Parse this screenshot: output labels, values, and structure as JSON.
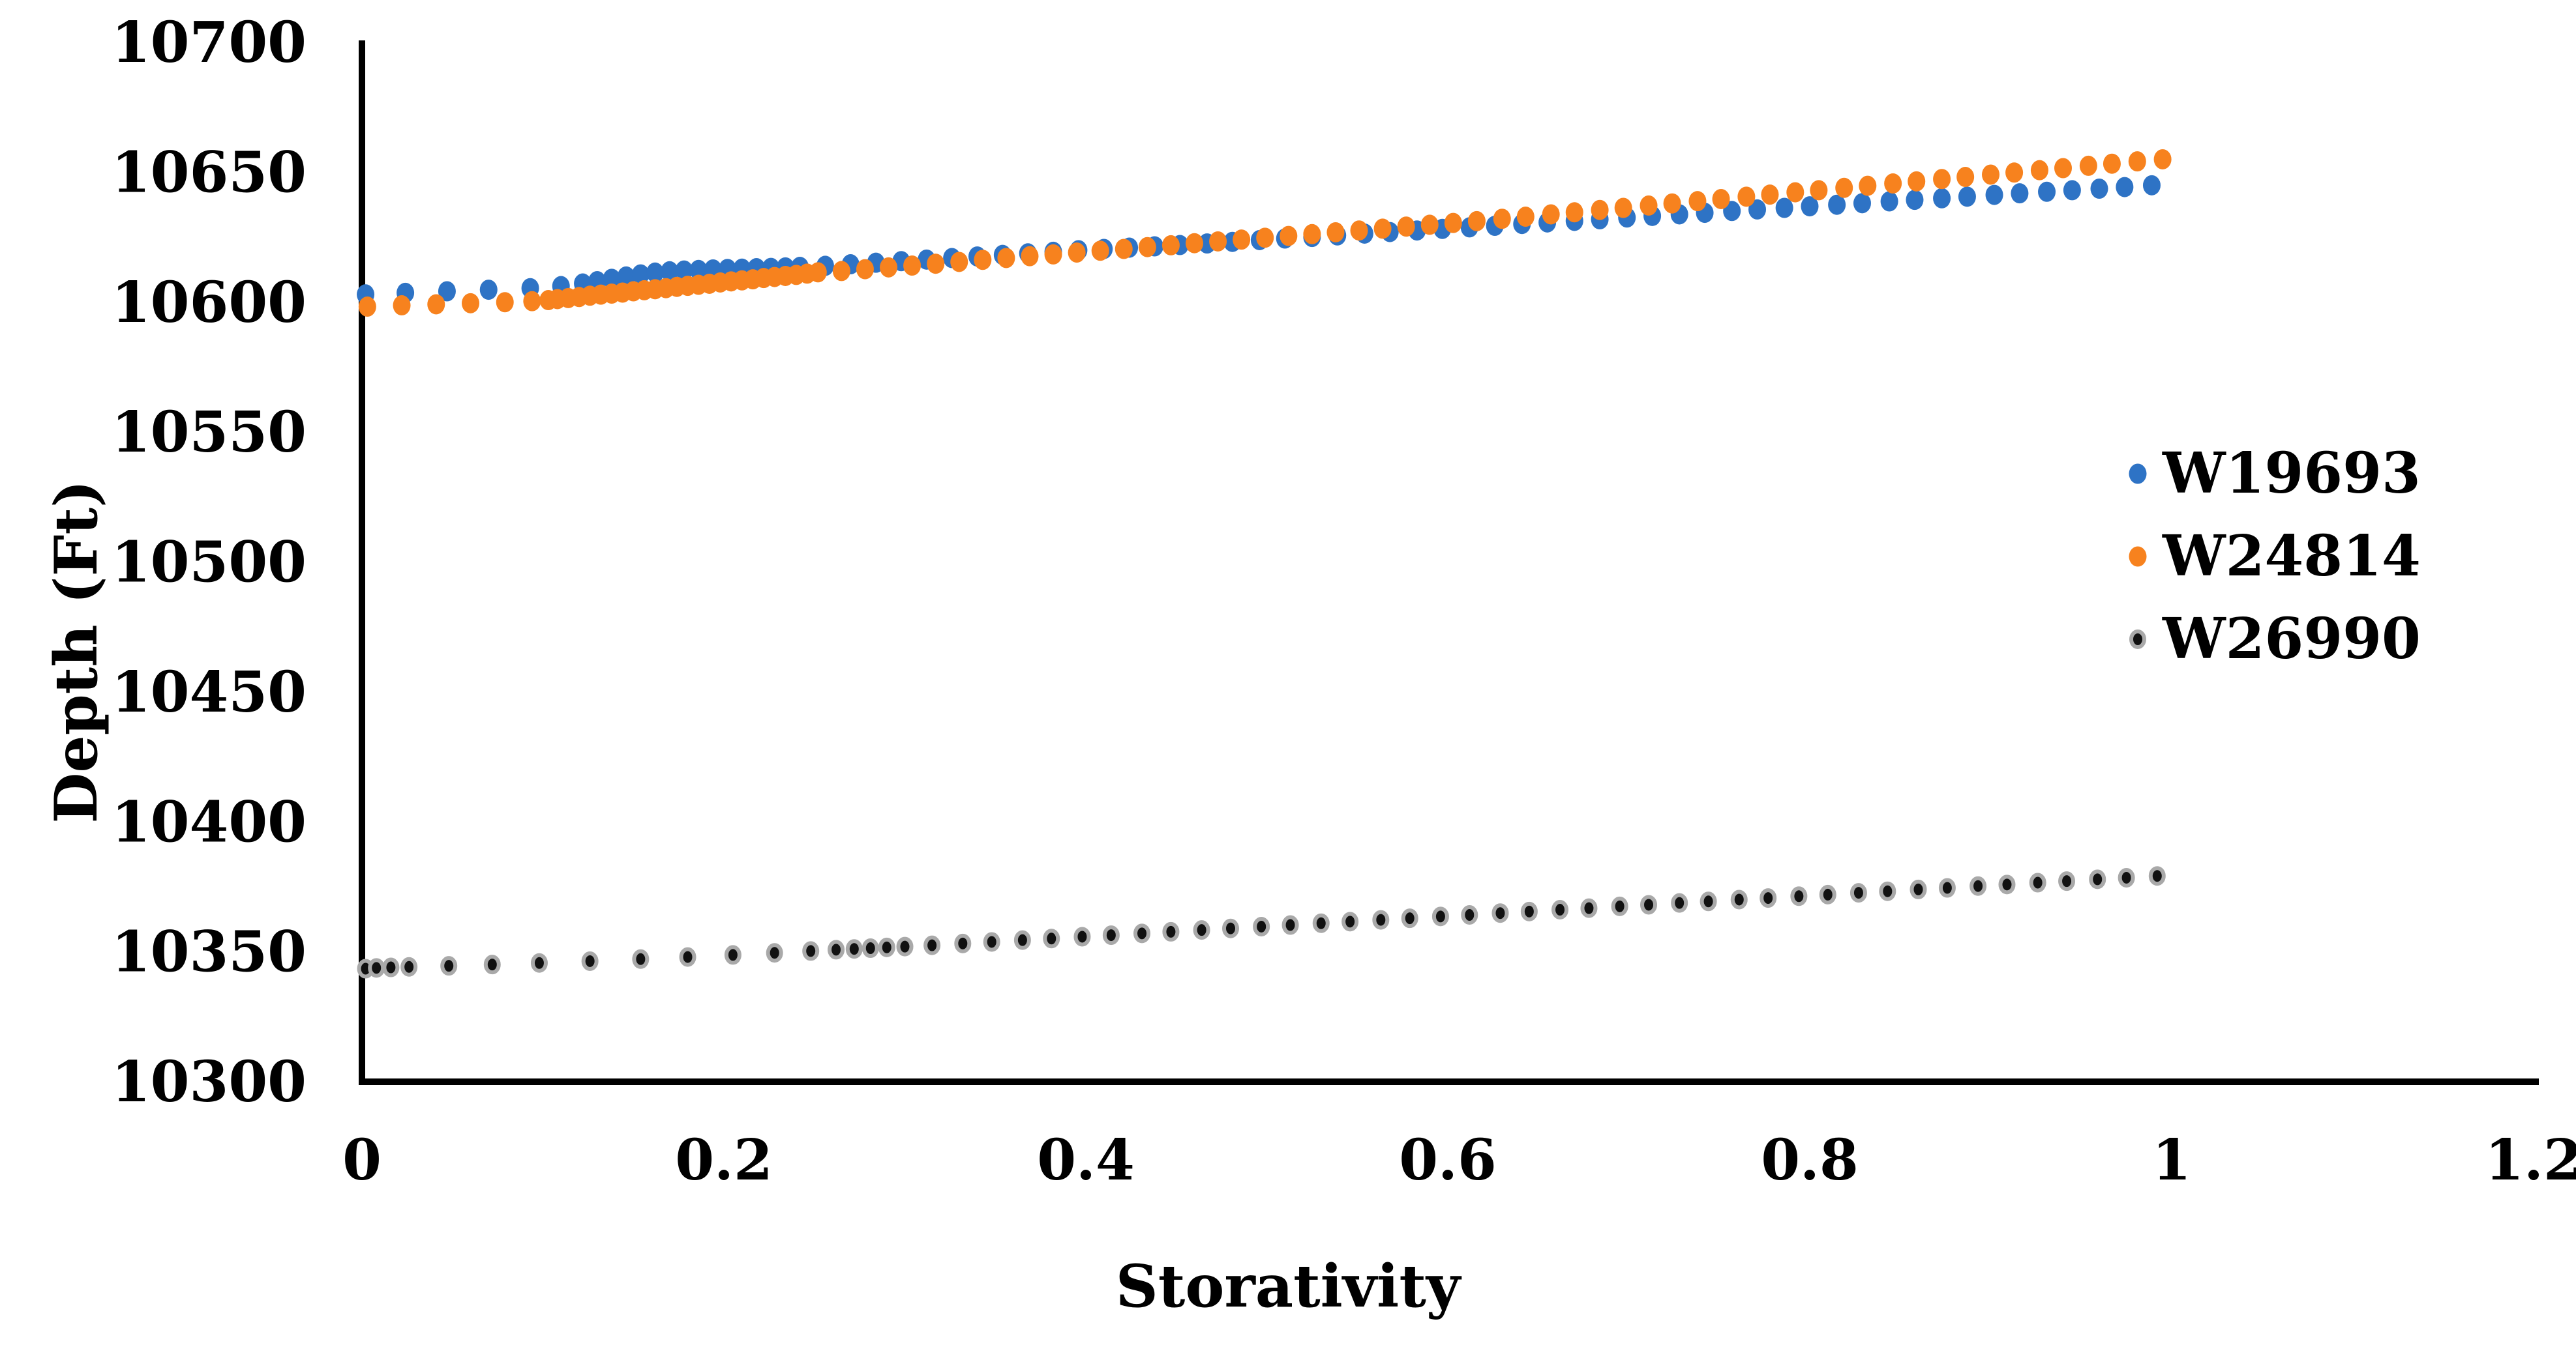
{
  "chart_data": {
    "type": "scatter",
    "title": "",
    "xlabel": "Storativity",
    "ylabel": "Depth (Ft)",
    "xlim": [
      0,
      1.2
    ],
    "ylim": [
      10300,
      10700
    ],
    "x_ticks": [
      0,
      0.2,
      0.4,
      0.6,
      0.8,
      1,
      1.2
    ],
    "x_tick_labels": [
      "0",
      "0.2",
      "0.4",
      "0.6",
      "0.8",
      "1",
      "1.2"
    ],
    "y_ticks": [
      10700,
      10650,
      10600,
      10550,
      10500,
      10450,
      10400,
      10350,
      10300
    ],
    "y_tick_labels": [
      "10700",
      "10650",
      "10600",
      "10550",
      "10500",
      "10450",
      "10400",
      "10350",
      "10300"
    ],
    "grid": false,
    "legend_position": "right",
    "axis_color": "#000000",
    "text_color": "#000000",
    "series": [
      {
        "name": "W19693",
        "color": "#2E73C5",
        "marker": "circle",
        "points": [
          [
            0.002,
            10603
          ],
          [
            0.024,
            10603.6
          ],
          [
            0.047,
            10604.2
          ],
          [
            0.07,
            10604.8
          ],
          [
            0.093,
            10605.4
          ],
          [
            0.11,
            10606.2
          ],
          [
            0.122,
            10607.2
          ],
          [
            0.13,
            10608.1
          ],
          [
            0.138,
            10609.0
          ],
          [
            0.146,
            10609.9
          ],
          [
            0.154,
            10610.7
          ],
          [
            0.162,
            10611.4
          ],
          [
            0.17,
            10611.9
          ],
          [
            0.178,
            10612.2
          ],
          [
            0.186,
            10612.4
          ],
          [
            0.194,
            10612.6
          ],
          [
            0.202,
            10612.8
          ],
          [
            0.21,
            10612.9
          ],
          [
            0.218,
            10613.1
          ],
          [
            0.226,
            10613.2
          ],
          [
            0.234,
            10613.4
          ],
          [
            0.242,
            10613.6
          ],
          [
            0.256,
            10614.0
          ],
          [
            0.27,
            10614.6
          ],
          [
            0.284,
            10615.2
          ],
          [
            0.298,
            10615.8
          ],
          [
            0.312,
            10616.4
          ],
          [
            0.326,
            10617.0
          ],
          [
            0.34,
            10617.6
          ],
          [
            0.354,
            10618.2
          ],
          [
            0.368,
            10618.8
          ],
          [
            0.382,
            10619.4
          ],
          [
            0.396,
            10620.0
          ],
          [
            0.41,
            10620.5
          ],
          [
            0.424,
            10621.0
          ],
          [
            0.438,
            10621.5
          ],
          [
            0.452,
            10622.0
          ],
          [
            0.467,
            10622.6
          ],
          [
            0.481,
            10623.2
          ],
          [
            0.496,
            10623.9
          ],
          [
            0.51,
            10624.5
          ],
          [
            0.525,
            10625.1
          ],
          [
            0.539,
            10625.7
          ],
          [
            0.554,
            10626.4
          ],
          [
            0.568,
            10627.0
          ],
          [
            0.583,
            10627.6
          ],
          [
            0.597,
            10628.2
          ],
          [
            0.612,
            10628.8
          ],
          [
            0.626,
            10629.4
          ],
          [
            0.641,
            10630.1
          ],
          [
            0.655,
            10630.7
          ],
          [
            0.67,
            10631.3
          ],
          [
            0.684,
            10631.9
          ],
          [
            0.699,
            10632.6
          ],
          [
            0.713,
            10633.2
          ],
          [
            0.728,
            10633.8
          ],
          [
            0.742,
            10634.4
          ],
          [
            0.757,
            10635.1
          ],
          [
            0.771,
            10635.7
          ],
          [
            0.786,
            10636.3
          ],
          [
            0.8,
            10636.9
          ],
          [
            0.815,
            10637.5
          ],
          [
            0.829,
            10638.1
          ],
          [
            0.844,
            10638.8
          ],
          [
            0.858,
            10639.4
          ],
          [
            0.873,
            10640.0
          ],
          [
            0.887,
            10640.6
          ],
          [
            0.902,
            10641.3
          ],
          [
            0.916,
            10641.9
          ],
          [
            0.931,
            10642.5
          ],
          [
            0.945,
            10643.1
          ],
          [
            0.96,
            10643.7
          ],
          [
            0.974,
            10644.3
          ],
          [
            0.989,
            10645.0
          ]
        ]
      },
      {
        "name": "W24814",
        "color": "#F7821E",
        "marker": "circle",
        "points": [
          [
            0.003,
            10598.3
          ],
          [
            0.022,
            10598.8
          ],
          [
            0.041,
            10599.2
          ],
          [
            0.06,
            10599.6
          ],
          [
            0.079,
            10600.0
          ],
          [
            0.094,
            10600.4
          ],
          [
            0.103,
            10600.8
          ],
          [
            0.108,
            10601.2
          ],
          [
            0.114,
            10601.6
          ],
          [
            0.12,
            10602.0
          ],
          [
            0.126,
            10602.5
          ],
          [
            0.132,
            10602.9
          ],
          [
            0.138,
            10603.3
          ],
          [
            0.144,
            10603.7
          ],
          [
            0.15,
            10604.2
          ],
          [
            0.156,
            10604.6
          ],
          [
            0.162,
            10605.0
          ],
          [
            0.168,
            10605.4
          ],
          [
            0.174,
            10605.9
          ],
          [
            0.18,
            10606.3
          ],
          [
            0.186,
            10606.7
          ],
          [
            0.192,
            10607.1
          ],
          [
            0.198,
            10607.6
          ],
          [
            0.204,
            10608.0
          ],
          [
            0.21,
            10608.4
          ],
          [
            0.216,
            10608.8
          ],
          [
            0.222,
            10609.3
          ],
          [
            0.228,
            10609.7
          ],
          [
            0.234,
            10610.1
          ],
          [
            0.24,
            10610.5
          ],
          [
            0.246,
            10611.0
          ],
          [
            0.252,
            10611.5
          ],
          [
            0.265,
            10612.0
          ],
          [
            0.278,
            10612.7
          ],
          [
            0.291,
            10613.4
          ],
          [
            0.304,
            10614.1
          ],
          [
            0.317,
            10614.8
          ],
          [
            0.33,
            10615.5
          ],
          [
            0.343,
            10616.3
          ],
          [
            0.356,
            10617.0
          ],
          [
            0.369,
            10617.7
          ],
          [
            0.382,
            10618.4
          ],
          [
            0.395,
            10619.1
          ],
          [
            0.408,
            10619.8
          ],
          [
            0.421,
            10620.5
          ],
          [
            0.434,
            10621.2
          ],
          [
            0.447,
            10621.9
          ],
          [
            0.46,
            10622.7
          ],
          [
            0.473,
            10623.4
          ],
          [
            0.486,
            10624.1
          ],
          [
            0.499,
            10624.8
          ],
          [
            0.512,
            10625.5
          ],
          [
            0.525,
            10626.2
          ],
          [
            0.538,
            10626.9
          ],
          [
            0.551,
            10627.6
          ],
          [
            0.564,
            10628.3
          ],
          [
            0.577,
            10629.1
          ],
          [
            0.59,
            10629.8
          ],
          [
            0.603,
            10630.5
          ],
          [
            0.616,
            10631.2
          ],
          [
            0.63,
            10632.1
          ],
          [
            0.643,
            10632.9
          ],
          [
            0.657,
            10633.8
          ],
          [
            0.67,
            10634.6
          ],
          [
            0.684,
            10635.5
          ],
          [
            0.697,
            10636.3
          ],
          [
            0.711,
            10637.2
          ],
          [
            0.724,
            10638.0
          ],
          [
            0.738,
            10638.9
          ],
          [
            0.751,
            10639.7
          ],
          [
            0.765,
            10640.6
          ],
          [
            0.778,
            10641.4
          ],
          [
            0.792,
            10642.3
          ],
          [
            0.805,
            10643.1
          ],
          [
            0.819,
            10644.0
          ],
          [
            0.832,
            10644.8
          ],
          [
            0.846,
            10645.7
          ],
          [
            0.859,
            10646.5
          ],
          [
            0.873,
            10647.4
          ],
          [
            0.886,
            10648.2
          ],
          [
            0.9,
            10649.1
          ],
          [
            0.913,
            10649.9
          ],
          [
            0.927,
            10650.8
          ],
          [
            0.94,
            10651.6
          ],
          [
            0.954,
            10652.5
          ],
          [
            0.967,
            10653.3
          ],
          [
            0.981,
            10654.2
          ],
          [
            0.995,
            10655.0
          ]
        ]
      },
      {
        "name": "W26990",
        "color": "#111111",
        "ring_color": "#A9A9A9",
        "marker": "ringed-circle",
        "points": [
          [
            0.002,
            10343.5
          ],
          [
            0.008,
            10343.8
          ],
          [
            0.016,
            10344.0
          ],
          [
            0.026,
            10344.2
          ],
          [
            0.048,
            10344.6
          ],
          [
            0.072,
            10345.1
          ],
          [
            0.098,
            10345.7
          ],
          [
            0.126,
            10346.4
          ],
          [
            0.154,
            10347.2
          ],
          [
            0.18,
            10348.0
          ],
          [
            0.205,
            10348.8
          ],
          [
            0.228,
            10349.6
          ],
          [
            0.248,
            10350.3
          ],
          [
            0.262,
            10350.8
          ],
          [
            0.272,
            10351.1
          ],
          [
            0.281,
            10351.4
          ],
          [
            0.29,
            10351.7
          ],
          [
            0.3,
            10352.0
          ],
          [
            0.315,
            10352.5
          ],
          [
            0.332,
            10353.2
          ],
          [
            0.348,
            10353.8
          ],
          [
            0.365,
            10354.5
          ],
          [
            0.381,
            10355.1
          ],
          [
            0.398,
            10355.8
          ],
          [
            0.414,
            10356.4
          ],
          [
            0.431,
            10357.1
          ],
          [
            0.447,
            10357.7
          ],
          [
            0.464,
            10358.4
          ],
          [
            0.48,
            10359.0
          ],
          [
            0.497,
            10359.7
          ],
          [
            0.513,
            10360.3
          ],
          [
            0.53,
            10361.0
          ],
          [
            0.546,
            10361.6
          ],
          [
            0.563,
            10362.3
          ],
          [
            0.579,
            10362.9
          ],
          [
            0.596,
            10363.6
          ],
          [
            0.612,
            10364.2
          ],
          [
            0.629,
            10364.9
          ],
          [
            0.645,
            10365.5
          ],
          [
            0.662,
            10366.2
          ],
          [
            0.678,
            10366.8
          ],
          [
            0.695,
            10367.5
          ],
          [
            0.711,
            10368.1
          ],
          [
            0.728,
            10368.8
          ],
          [
            0.744,
            10369.4
          ],
          [
            0.761,
            10370.1
          ],
          [
            0.777,
            10370.7
          ],
          [
            0.794,
            10371.4
          ],
          [
            0.81,
            10372.0
          ],
          [
            0.827,
            10372.7
          ],
          [
            0.843,
            10373.3
          ],
          [
            0.86,
            10374.0
          ],
          [
            0.876,
            10374.6
          ],
          [
            0.893,
            10375.3
          ],
          [
            0.909,
            10375.9
          ],
          [
            0.926,
            10376.6
          ],
          [
            0.942,
            10377.2
          ],
          [
            0.959,
            10377.9
          ],
          [
            0.975,
            10378.5
          ],
          [
            0.992,
            10379.2
          ]
        ]
      }
    ]
  }
}
